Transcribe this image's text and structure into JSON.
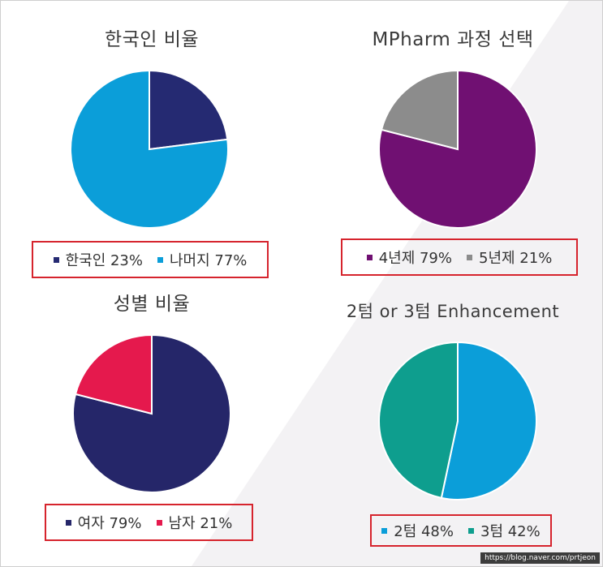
{
  "chart_data": [
    {
      "type": "pie",
      "title": "한국인 비율",
      "series": [
        {
          "name": "한국인",
          "value": 23,
          "label": "한국인 23%",
          "color": "#252a72"
        },
        {
          "name": "나머지",
          "value": 77,
          "label": "나머지 77%",
          "color": "#0b9ed9"
        }
      ]
    },
    {
      "type": "pie",
      "title": "MPharm 과정 선택",
      "series": [
        {
          "name": "4년제",
          "value": 79,
          "label": "4년제 79%",
          "color": "#701072"
        },
        {
          "name": "5년제",
          "value": 21,
          "label": "5년제 21%",
          "color": "#8c8c8c"
        }
      ]
    },
    {
      "type": "pie",
      "title": "성별 비율",
      "series": [
        {
          "name": "여자",
          "value": 79,
          "label": "여자 79%",
          "color": "#252669"
        },
        {
          "name": "남자",
          "value": 21,
          "label": "남자 21%",
          "color": "#e5194d"
        }
      ]
    },
    {
      "type": "pie",
      "title": "2텀 or 3텀 Enhancement",
      "series": [
        {
          "name": "2텀",
          "value": 48,
          "label": "2텀 48%",
          "color": "#0b9ed9"
        },
        {
          "name": "3텀",
          "value": 42,
          "label": "3텀 42%",
          "color": "#0e9e8e"
        }
      ]
    }
  ],
  "watermark": "https://blog.naver.com/prtjeon"
}
